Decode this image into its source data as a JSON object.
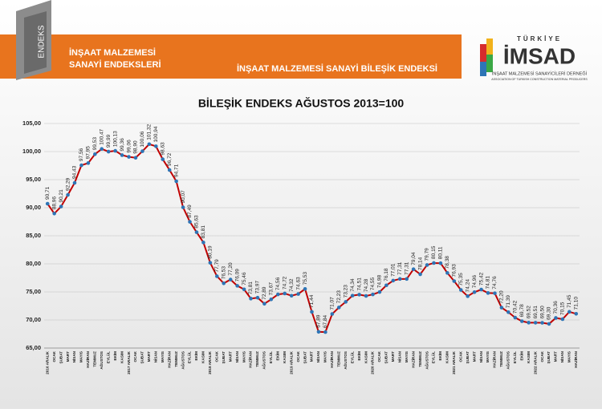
{
  "header": {
    "logo_text": "ENDEKS",
    "section_title_1": "İNŞAAT MALZEMESİ",
    "section_title_2": "SANAYİ ENDEKSLERİ",
    "page_title": "İNŞAAT MALZEMESİ SANAYİ BİLEŞİK ENDEKSİ",
    "brand_top": "TÜRKİYE",
    "brand": "İMSAD",
    "tagline_1": "İNŞAAT MALZEMESİ SANAYİCİLERİ DERNEĞİ",
    "tagline_2": "ASSOCIATION OF TURKISH CONSTRUCTION MATERIAL PRODUCERS"
  },
  "chart_data": {
    "type": "line",
    "title": "BİLEŞİK ENDEKS AĞUSTOS 2013=100",
    "categories": [
      "2016 ARALIK",
      "OCAK",
      "ŞUBAT",
      "MART",
      "NİSAN",
      "MAYIS",
      "HAZİRAN",
      "TEMMUZ",
      "AĞUSTOS",
      "EYLÜL",
      "EKİM",
      "KASIM",
      "2017 ARALIK",
      "OCAK",
      "ŞUBAT",
      "MART",
      "NİSAN",
      "MAYIS",
      "HAZİRAN",
      "TEMMUZ",
      "AĞUSTOS",
      "EYLÜL",
      "EKİM",
      "KASIM",
      "2018 ARALIK",
      "OCAK",
      "ŞUBAT",
      "MART",
      "NİSAN",
      "MAYIS",
      "HAZİRAN",
      "TEMMUZ",
      "AĞUSTOS",
      "EYLÜL",
      "EKİM",
      "KASIM",
      "2019 ARALIK",
      "OCAK",
      "ŞUBAT",
      "MART",
      "NİSAN",
      "MAYIS",
      "HAZİRAN",
      "TEMMUZ",
      "AĞUSTOS",
      "EYLÜL",
      "EKİM",
      "KASIM",
      "2020 ARALIK",
      "OCAK",
      "ŞUBAT",
      "MART",
      "NİSAN",
      "MAYIS",
      "HAZİRAN",
      "TEMMUZ",
      "AĞUSTOS",
      "EYLÜL",
      "EKİM",
      "KASIM",
      "2021 ARALIK",
      "OCAK",
      "ŞUBAT",
      "MART",
      "NİSAN",
      "MAYIS",
      "HAZİRAN",
      "TEMMUZ",
      "AĞUSTOS",
      "EYLÜL",
      "EKİM",
      "KASIM",
      "2022 ARALIK",
      "OCAK",
      "ŞUBAT",
      "MART",
      "NİSAN",
      "MAYIS",
      "HAZİRAN"
    ],
    "series": [
      {
        "color": "#c00000",
        "marker_color": "#2e75b6",
        "values": [
          90.71,
          88.96,
          90.21,
          92.29,
          94.43,
          97.56,
          97.95,
          99.53,
          100.47,
          99.99,
          100.13,
          99.36,
          99.06,
          98.9,
          100.06,
          101.32,
          100.94,
          98.63,
          96.72,
          94.71,
          90.07,
          87.49,
          85.63,
          83.81,
          80.19,
          77.79,
          76.53,
          77.2,
          76.09,
          75.46,
          73.81,
          73.97,
          72.89,
          73.67,
          74.56,
          74.72,
          74.32,
          74.63,
          75.53,
          71.44,
          67.89,
          67.84,
          71.07,
          72.23,
          73.23,
          74.34,
          74.51,
          74.28,
          74.55,
          74.98,
          76.18,
          77.01,
          77.31,
          77.31,
          79.04,
          78.14,
          79.79,
          80.15,
          80.11,
          78.38,
          76.93,
          75.35,
          74.24,
          74.96,
          75.42,
          74.81,
          74.76,
          72.2,
          71.39,
          70.42,
          69.78,
          69.52,
          69.51,
          69.5,
          69.3,
          70.36,
          70.15,
          71.45,
          71.1
        ],
        "value_labels": [
          "90,71",
          "88,96",
          "90,21",
          "92,29",
          "94,43",
          "97,56",
          "97,95",
          "99,53",
          "100,47",
          "99,99",
          "100,13",
          "99,36",
          "99,06",
          "98,90",
          "100,06",
          "101,32",
          "100,94",
          "98,63",
          "96,72",
          "94,71",
          "90,07",
          "87,49",
          "85,63",
          "83,81",
          "80,19",
          "77,79",
          "76,53",
          "77,20",
          "76,09",
          "75,46",
          "73,81",
          "73,97",
          "72,89",
          "73,67",
          "74,56",
          "74,72",
          "74,32",
          "74,63",
          "75,53",
          "71,44",
          "67,89",
          "67,84",
          "71,07",
          "72,23",
          "73,23",
          "74,34",
          "74,51",
          "74,28",
          "74,55",
          "74,98",
          "76,18",
          "77,01",
          "77,31",
          "77,31",
          "79,04",
          "78,14",
          "79,79",
          "80,15",
          "80,11",
          "78,38",
          "76,93",
          "75,35",
          "74,24",
          "74,96",
          "75,42",
          "74,81",
          "74,76",
          "72,20",
          "71,39",
          "70,42",
          "69,78",
          "69,52",
          "69,51",
          "69,50",
          "69,30",
          "70,36",
          "70,15",
          "71,45",
          "71,10"
        ]
      }
    ],
    "ylim": [
      65,
      105
    ],
    "yticks": [
      {
        "value": 65,
        "label": "65,00"
      },
      {
        "value": 70,
        "label": "70,00"
      },
      {
        "value": 75,
        "label": "75,00"
      },
      {
        "value": 80,
        "label": "80,00"
      },
      {
        "value": 85,
        "label": "85,00"
      },
      {
        "value": 90,
        "label": "90,00"
      },
      {
        "value": 95,
        "label": "95,00"
      },
      {
        "value": 100,
        "label": "100,00"
      },
      {
        "value": 105,
        "label": "105,00"
      }
    ],
    "grid": true
  }
}
